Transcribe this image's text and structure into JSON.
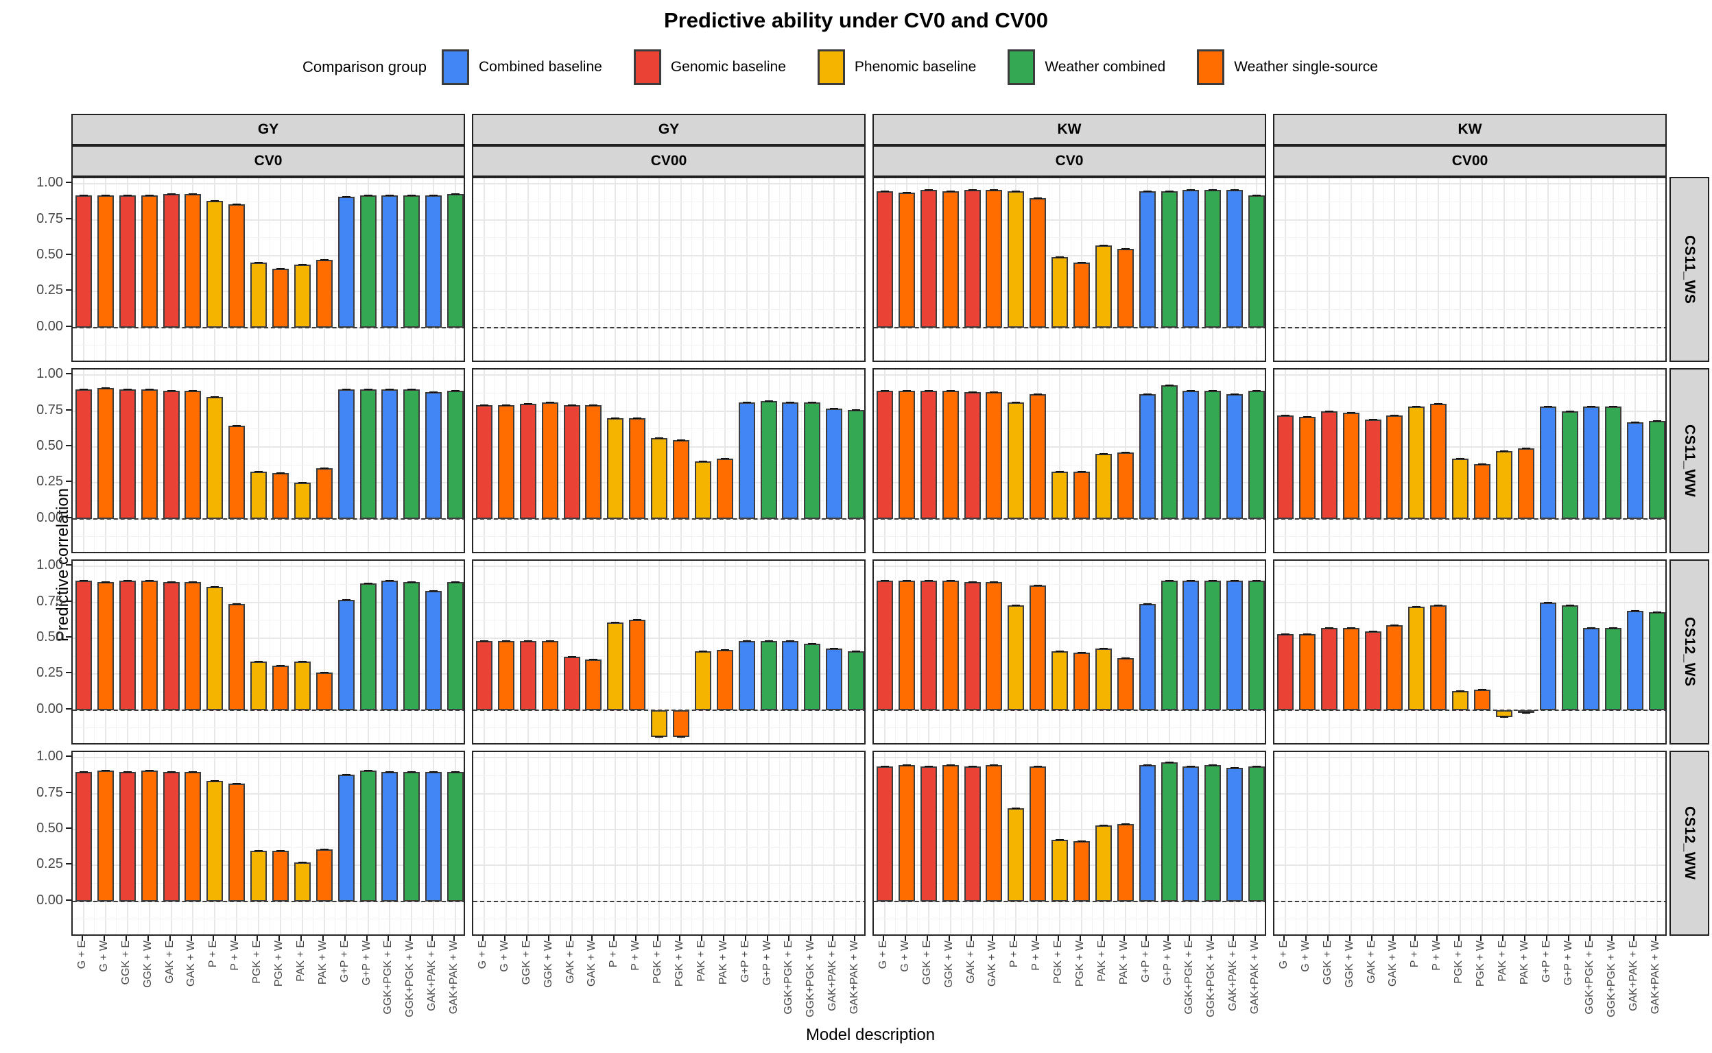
{
  "title": "Predictive ability under CV0 and CV00",
  "legend": {
    "title": "Comparison group",
    "items": [
      {
        "label": "Combined baseline",
        "color": "#4285F4"
      },
      {
        "label": "Genomic baseline",
        "color": "#EA4335"
      },
      {
        "label": "Phenomic baseline",
        "color": "#F4B400"
      },
      {
        "label": "Weather combined",
        "color": "#34A853"
      },
      {
        "label": "Weather single-source",
        "color": "#FF6D00"
      }
    ]
  },
  "axes": {
    "x_title": "Model description",
    "y_title": "Predictive correlation",
    "y_tick_labels": [
      "1.00",
      "0.75",
      "0.50",
      "0.25",
      "0.00"
    ]
  },
  "chart_data": {
    "type": "bar",
    "title": "Predictive ability under CV0 and CV00",
    "xlabel": "Model description",
    "ylabel": "Predictive correlation",
    "ylim": [
      -0.25,
      1.04
    ],
    "y_major_ticks": [
      1.0,
      0.75,
      0.5,
      0.25,
      0.0
    ],
    "grid": true,
    "zero_line": "dashed",
    "legend_position": "top",
    "categories": [
      "G + E",
      "G + W",
      "GGK + E",
      "GGK + W",
      "GAK + E",
      "GAK + W",
      "P + E",
      "P + W",
      "PGK + E",
      "PGK + W",
      "PAK + E",
      "PAK + W",
      "G+P + E",
      "G+P + W",
      "GGK+PGK + E",
      "GGK+PGK + W",
      "GAK+PAK + E",
      "GAK+PAK + W"
    ],
    "category_group_index": [
      1,
      4,
      1,
      4,
      1,
      4,
      2,
      4,
      2,
      4,
      2,
      4,
      0,
      3,
      0,
      3,
      0,
      3
    ],
    "groups": [
      {
        "name": "Combined baseline",
        "color": "#4285F4"
      },
      {
        "name": "Genomic baseline",
        "color": "#EA4335"
      },
      {
        "name": "Phenomic baseline",
        "color": "#F4B400"
      },
      {
        "name": "Weather combined",
        "color": "#34A853"
      },
      {
        "name": "Weather single-source",
        "color": "#FF6D00"
      }
    ],
    "facet_cols": [
      {
        "trait": "GY",
        "cv": "CV0"
      },
      {
        "trait": "GY",
        "cv": "CV00"
      },
      {
        "trait": "KW",
        "cv": "CV0"
      },
      {
        "trait": "KW",
        "cv": "CV00"
      }
    ],
    "facet_rows": [
      "CS11_WS",
      "CS11_WW",
      "CS12_WS",
      "CS12_WW"
    ],
    "panels": [
      [
        [
          0.92,
          0.92,
          0.92,
          0.92,
          0.93,
          0.93,
          0.88,
          0.86,
          0.45,
          0.41,
          0.44,
          0.47,
          0.91,
          0.92,
          0.92,
          0.92,
          0.92,
          0.93
        ],
        null,
        [
          0.95,
          0.94,
          0.96,
          0.95,
          0.96,
          0.96,
          0.95,
          0.9,
          0.49,
          0.45,
          0.57,
          0.55,
          0.95,
          0.95,
          0.96,
          0.96,
          0.96,
          0.92
        ],
        null
      ],
      [
        [
          0.9,
          0.91,
          0.9,
          0.9,
          0.89,
          0.89,
          0.85,
          0.65,
          0.33,
          0.32,
          0.25,
          0.35,
          0.9,
          0.9,
          0.9,
          0.9,
          0.88,
          0.89
        ],
        [
          0.79,
          0.79,
          0.8,
          0.81,
          0.79,
          0.79,
          0.7,
          0.7,
          0.56,
          0.55,
          0.4,
          0.42,
          0.81,
          0.82,
          0.81,
          0.81,
          0.77,
          0.76
        ],
        [
          0.89,
          0.89,
          0.89,
          0.89,
          0.88,
          0.88,
          0.81,
          0.87,
          0.33,
          0.33,
          0.45,
          0.46,
          0.87,
          0.93,
          0.89,
          0.89,
          0.87,
          0.89
        ],
        [
          0.72,
          0.71,
          0.75,
          0.74,
          0.69,
          0.72,
          0.78,
          0.8,
          0.42,
          0.38,
          0.47,
          0.49,
          0.78,
          0.75,
          0.78,
          0.78,
          0.67,
          0.68
        ]
      ],
      [
        [
          0.9,
          0.89,
          0.9,
          0.9,
          0.89,
          0.89,
          0.86,
          0.74,
          0.34,
          0.31,
          0.34,
          0.26,
          0.77,
          0.88,
          0.9,
          0.89,
          0.83,
          0.89
        ],
        [
          0.48,
          0.48,
          0.48,
          0.48,
          0.37,
          0.35,
          0.61,
          0.63,
          -0.19,
          -0.19,
          0.41,
          0.42,
          0.48,
          0.48,
          0.48,
          0.46,
          0.43,
          0.41
        ],
        [
          0.9,
          0.9,
          0.9,
          0.9,
          0.89,
          0.89,
          0.73,
          0.87,
          0.41,
          0.4,
          0.43,
          0.36,
          0.74,
          0.9,
          0.9,
          0.9,
          0.9,
          0.9
        ],
        [
          0.53,
          0.53,
          0.57,
          0.57,
          0.55,
          0.59,
          0.72,
          0.73,
          0.13,
          0.14,
          -0.05,
          -0.02,
          0.75,
          0.73,
          0.57,
          0.57,
          0.69,
          0.68
        ]
      ],
      [
        [
          0.9,
          0.91,
          0.9,
          0.91,
          0.9,
          0.9,
          0.84,
          0.82,
          0.35,
          0.35,
          0.27,
          0.36,
          0.88,
          0.91,
          0.9,
          0.9,
          0.9,
          0.9
        ],
        null,
        [
          0.94,
          0.95,
          0.94,
          0.95,
          0.94,
          0.95,
          0.65,
          0.94,
          0.43,
          0.42,
          0.53,
          0.54,
          0.95,
          0.97,
          0.94,
          0.95,
          0.93,
          0.94
        ],
        null
      ]
    ]
  }
}
